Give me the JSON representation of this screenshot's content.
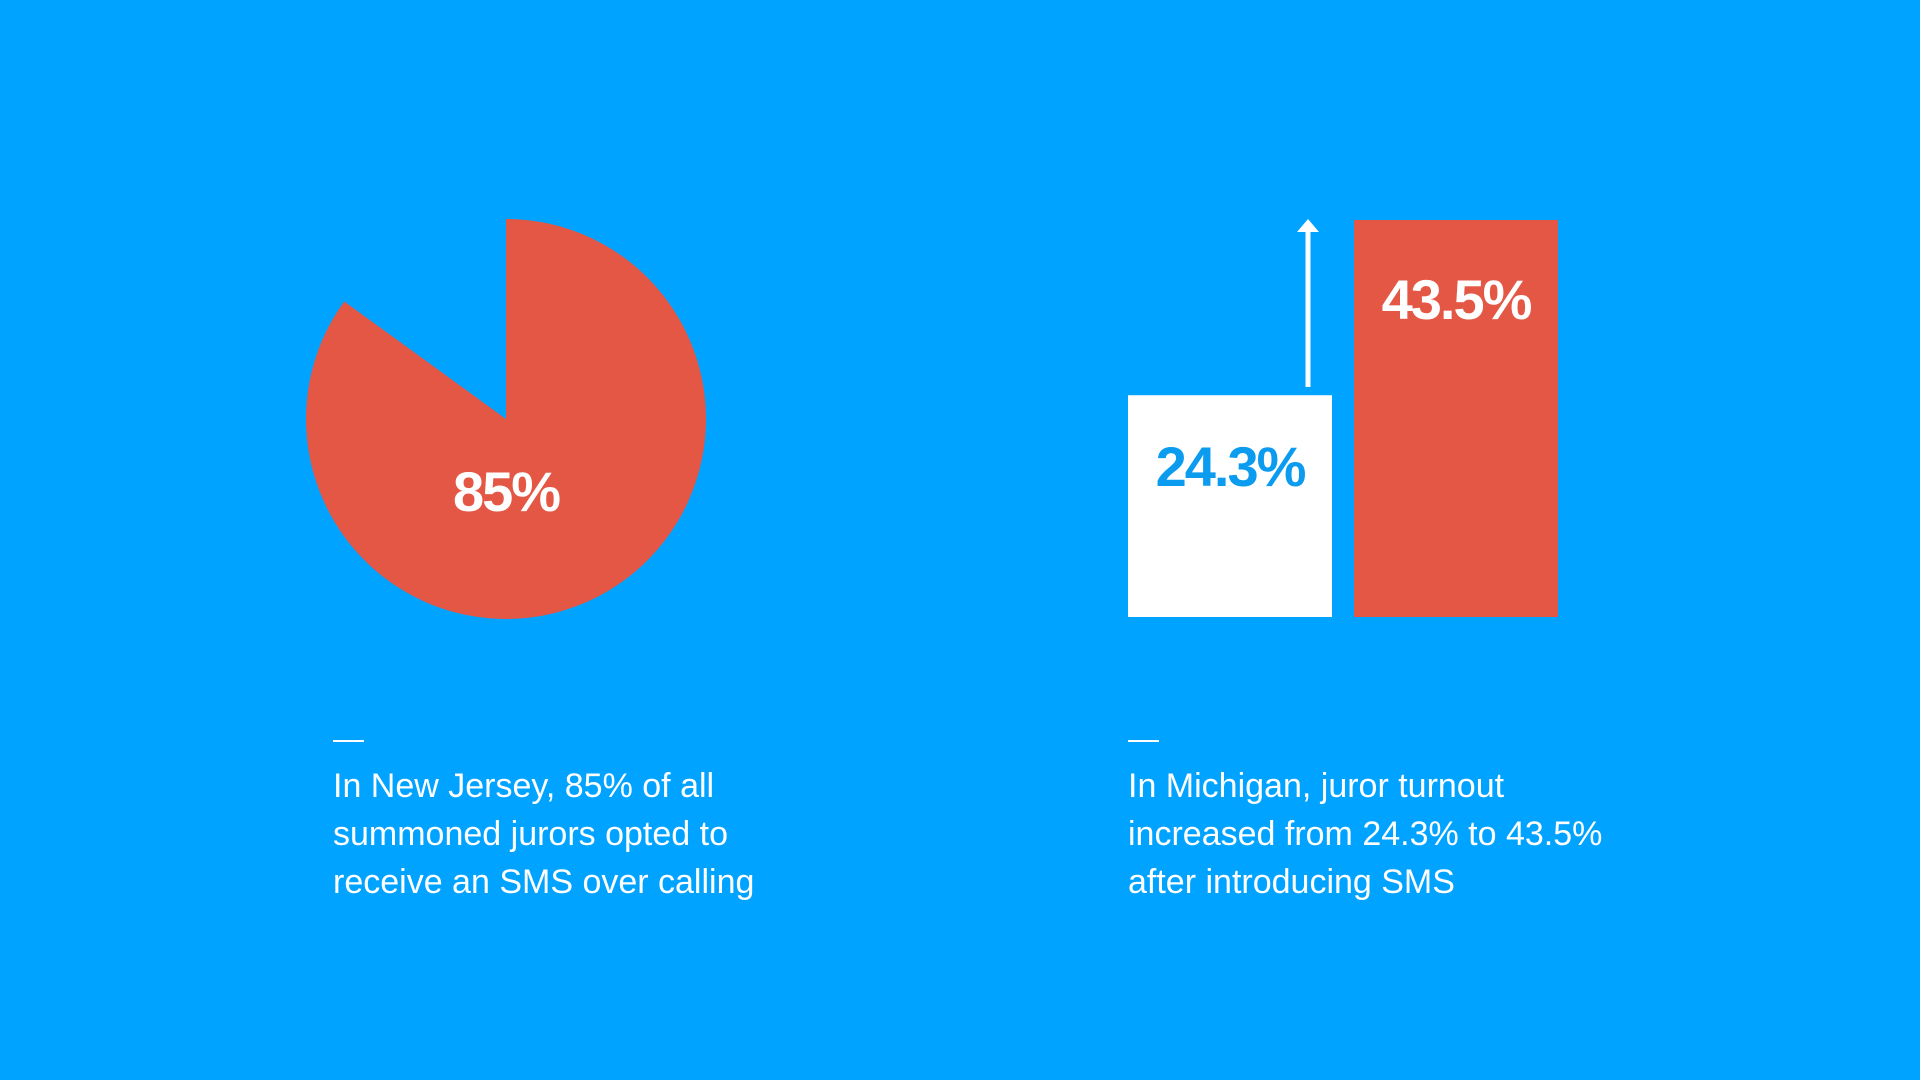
{
  "chart_data": [
    {
      "type": "pie",
      "values": [
        85
      ],
      "value_labels": [
        "85%"
      ],
      "color": "#e45745",
      "label_color": "#ffffff",
      "caption": [
        "In New Jersey, 85% of all",
        "summoned jurors opted to",
        "receive an SMS over calling"
      ]
    },
    {
      "type": "bar",
      "values": [
        24.3,
        43.5
      ],
      "value_labels": [
        "24.3%",
        "43.5%"
      ],
      "colors": [
        "#ffffff",
        "#e45745"
      ],
      "label_colors": [
        "#0b9bef",
        "#ffffff"
      ],
      "caption": [
        "In Michigan, juror turnout",
        "increased from 24.3% to 43.5%",
        "after introducing SMS"
      ]
    }
  ]
}
